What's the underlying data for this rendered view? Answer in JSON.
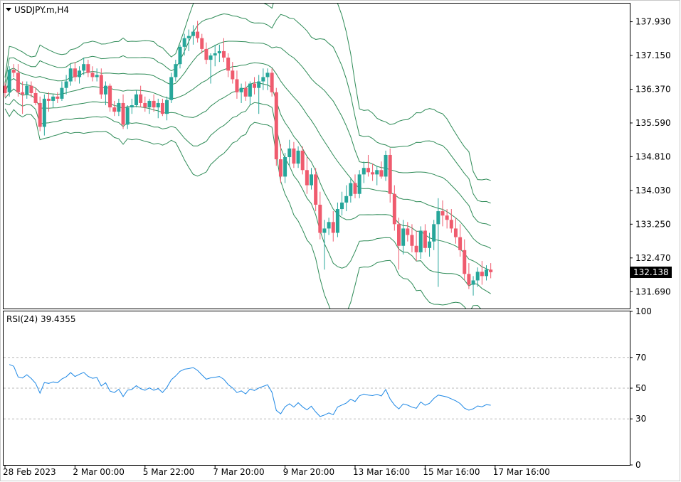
{
  "chart_data": [
    {
      "type": "candlestick",
      "symbol_label": "USDJPY.m,H4",
      "ylim": [
        131.3,
        138.35
      ],
      "y_ticks": [
        "137.930",
        "137.150",
        "136.370",
        "135.590",
        "134.810",
        "134.030",
        "133.250",
        "132.470",
        "131.690"
      ],
      "current_price": "132.138",
      "colors": {
        "bull": "#26a69a",
        "bear": "#ef5b6e",
        "bands": "#2e8b57"
      },
      "x_labels": [
        "28 Feb 2023",
        "2 Mar 00:00",
        "5 Mar 22:00",
        "7 Mar 20:00",
        "9 Mar 20:00",
        "13 Mar 16:00",
        "15 Mar 16:00",
        "17 Mar 16:00"
      ],
      "x_label_candle_index": [
        0,
        16,
        32,
        48,
        64,
        80,
        96,
        112
      ],
      "candles": [
        [
          136.45,
          136.52,
          136.18,
          136.28
        ],
        [
          136.3,
          136.9,
          136.2,
          136.82
        ],
        [
          136.82,
          136.95,
          136.65,
          136.75
        ],
        [
          136.75,
          136.95,
          136.2,
          136.3
        ],
        [
          136.3,
          136.55,
          135.8,
          136.25
        ],
        [
          136.25,
          136.55,
          136.15,
          136.45
        ],
        [
          136.45,
          136.55,
          136.18,
          136.28
        ],
        [
          136.28,
          136.4,
          136.0,
          136.05
        ],
        [
          136.05,
          136.2,
          135.4,
          135.5
        ],
        [
          135.5,
          136.25,
          135.3,
          136.15
        ],
        [
          136.15,
          136.3,
          135.85,
          136.1
        ],
        [
          136.1,
          136.25,
          135.95,
          136.2
        ],
        [
          136.2,
          136.3,
          136.05,
          136.15
        ],
        [
          136.15,
          136.55,
          136.1,
          136.4
        ],
        [
          136.4,
          136.7,
          136.25,
          136.55
        ],
        [
          136.55,
          136.95,
          136.45,
          136.85
        ],
        [
          136.85,
          137.0,
          136.55,
          136.65
        ],
        [
          136.65,
          136.9,
          136.5,
          136.8
        ],
        [
          136.8,
          137.1,
          136.7,
          136.95
        ],
        [
          136.95,
          137.05,
          136.65,
          136.75
        ],
        [
          136.75,
          136.9,
          136.55,
          136.65
        ],
        [
          136.65,
          136.85,
          136.55,
          136.7
        ],
        [
          136.7,
          136.85,
          136.15,
          136.25
        ],
        [
          136.25,
          136.55,
          136.0,
          136.45
        ],
        [
          136.45,
          136.5,
          135.85,
          135.95
        ],
        [
          135.95,
          136.1,
          135.75,
          135.85
        ],
        [
          135.85,
          136.15,
          135.75,
          136.05
        ],
        [
          136.05,
          136.25,
          135.45,
          135.55
        ],
        [
          135.55,
          136.0,
          135.45,
          135.95
        ],
        [
          135.95,
          136.15,
          135.8,
          136.0
        ],
        [
          136.0,
          136.35,
          135.95,
          136.25
        ],
        [
          136.25,
          136.45,
          135.95,
          136.05
        ],
        [
          136.05,
          136.2,
          135.85,
          135.95
        ],
        [
          135.95,
          136.15,
          135.8,
          136.1
        ],
        [
          136.1,
          136.25,
          135.85,
          135.95
        ],
        [
          135.95,
          136.15,
          135.7,
          136.05
        ],
        [
          136.05,
          136.15,
          135.75,
          135.8
        ],
        [
          135.8,
          136.2,
          135.65,
          136.12
        ],
        [
          136.12,
          136.75,
          136.05,
          136.65
        ],
        [
          136.65,
          137.05,
          136.55,
          136.95
        ],
        [
          136.95,
          137.4,
          136.85,
          137.35
        ],
        [
          137.35,
          137.65,
          137.15,
          137.55
        ],
        [
          137.55,
          137.75,
          137.25,
          137.6
        ],
        [
          137.6,
          137.85,
          137.4,
          137.7
        ],
        [
          137.7,
          137.95,
          137.45,
          137.55
        ],
        [
          137.55,
          137.65,
          137.2,
          137.3
        ],
        [
          137.3,
          137.45,
          136.95,
          137.05
        ],
        [
          137.05,
          137.2,
          136.5,
          137.15
        ],
        [
          137.15,
          137.4,
          136.9,
          137.2
        ],
        [
          137.2,
          137.4,
          137.0,
          137.25
        ],
        [
          137.25,
          137.55,
          137.0,
          137.1
        ],
        [
          137.1,
          137.2,
          136.65,
          136.8
        ],
        [
          136.8,
          137.0,
          136.5,
          136.6
        ],
        [
          136.6,
          136.8,
          136.15,
          136.3
        ],
        [
          136.3,
          136.5,
          136.05,
          136.4
        ],
        [
          136.4,
          136.55,
          136.1,
          136.2
        ],
        [
          136.2,
          136.55,
          136.0,
          136.5
        ],
        [
          136.5,
          136.65,
          136.25,
          136.4
        ],
        [
          136.4,
          136.7,
          135.8,
          136.55
        ],
        [
          136.55,
          136.85,
          136.35,
          136.65
        ],
        [
          136.65,
          136.85,
          136.35,
          136.75
        ],
        [
          136.75,
          136.85,
          136.2,
          136.3
        ],
        [
          136.3,
          136.4,
          134.6,
          134.75
        ],
        [
          134.75,
          135.1,
          134.2,
          134.35
        ],
        [
          134.35,
          134.9,
          134.2,
          134.8
        ],
        [
          134.8,
          135.2,
          134.6,
          135.0
        ],
        [
          135.0,
          135.15,
          134.55,
          134.65
        ],
        [
          134.65,
          135.05,
          134.55,
          134.95
        ],
        [
          134.95,
          135.05,
          134.4,
          134.5
        ],
        [
          134.5,
          134.8,
          133.95,
          134.15
        ],
        [
          134.15,
          134.55,
          134.05,
          134.4
        ],
        [
          134.4,
          134.55,
          133.55,
          133.7
        ],
        [
          133.7,
          134.0,
          132.9,
          133.05
        ],
        [
          133.05,
          133.35,
          132.2,
          133.15
        ],
        [
          133.15,
          133.4,
          133.0,
          133.3
        ],
        [
          133.3,
          133.55,
          132.85,
          133.05
        ],
        [
          133.05,
          133.75,
          132.95,
          133.6
        ],
        [
          133.6,
          134.0,
          133.45,
          133.75
        ],
        [
          133.75,
          134.15,
          133.55,
          133.9
        ],
        [
          133.9,
          134.3,
          133.75,
          134.2
        ],
        [
          134.2,
          134.4,
          133.85,
          133.95
        ],
        [
          133.95,
          134.5,
          133.85,
          134.4
        ],
        [
          134.4,
          134.7,
          134.2,
          134.55
        ],
        [
          134.55,
          134.85,
          134.35,
          134.45
        ],
        [
          134.45,
          134.65,
          134.25,
          134.4
        ],
        [
          134.4,
          134.6,
          134.15,
          134.5
        ],
        [
          134.5,
          134.7,
          134.3,
          134.35
        ],
        [
          134.35,
          134.95,
          134.25,
          134.85
        ],
        [
          134.85,
          135.0,
          133.75,
          133.95
        ],
        [
          133.95,
          134.15,
          133.1,
          133.25
        ],
        [
          133.25,
          133.4,
          132.2,
          132.75
        ],
        [
          132.75,
          133.35,
          132.55,
          133.15
        ],
        [
          133.15,
          133.3,
          132.85,
          133.0
        ],
        [
          133.0,
          133.25,
          132.6,
          132.75
        ],
        [
          132.75,
          133.1,
          132.4,
          132.6
        ],
        [
          132.6,
          133.2,
          132.45,
          133.1
        ],
        [
          133.1,
          133.25,
          132.6,
          132.7
        ],
        [
          132.7,
          133.05,
          132.5,
          132.85
        ],
        [
          132.85,
          133.35,
          132.65,
          133.25
        ],
        [
          133.25,
          133.85,
          131.8,
          133.55
        ],
        [
          133.55,
          133.8,
          133.2,
          133.45
        ],
        [
          133.45,
          133.6,
          133.15,
          133.35
        ],
        [
          133.35,
          133.6,
          133.05,
          133.15
        ],
        [
          133.15,
          133.4,
          132.8,
          132.95
        ],
        [
          132.95,
          133.25,
          132.5,
          132.65
        ],
        [
          132.65,
          132.9,
          131.95,
          132.1
        ],
        [
          132.1,
          132.35,
          131.75,
          131.85
        ],
        [
          131.85,
          132.05,
          131.6,
          131.95
        ],
        [
          131.95,
          132.25,
          131.8,
          132.15
        ],
        [
          132.15,
          132.4,
          131.85,
          132.05
        ],
        [
          132.05,
          132.3,
          131.95,
          132.2
        ],
        [
          132.2,
          132.35,
          132.0,
          132.14
        ]
      ],
      "bands": {
        "period": 20,
        "widths": [
          1.0,
          2.0,
          3.0
        ]
      }
    },
    {
      "type": "line",
      "label": "RSI(24) 39.4355",
      "ylim": [
        0,
        100
      ],
      "y_ticks": [
        "100",
        "70",
        "50",
        "30",
        "0"
      ],
      "levels": [
        70,
        50,
        30
      ],
      "color": "#1e88e5"
    }
  ]
}
